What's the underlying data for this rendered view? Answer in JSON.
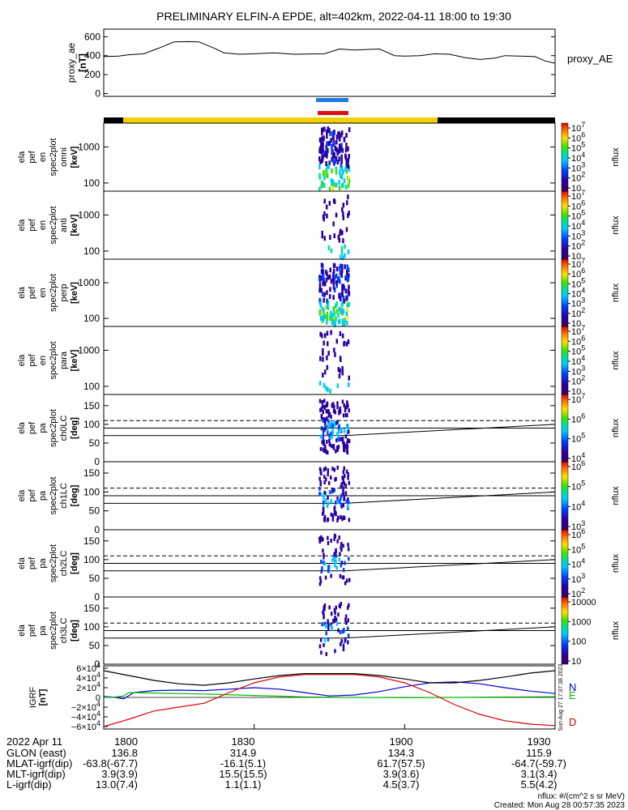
{
  "chart_data": {
    "type": "heatmap",
    "title": "PRELIMINARY ELFIN-A EPDE, alt=402km, 2022-04-11 18:00 to 19:30",
    "x_range": [
      "18:00",
      "19:30"
    ],
    "panels": [
      {
        "ylabel": [
          "proxy_ae",
          "[nT]"
        ],
        "yticks": [
          "600",
          "400",
          "200",
          "0"
        ],
        "ylim": [
          -30,
          680
        ],
        "series": [
          {
            "name": "proxy_AE",
            "x": [
              0,
              3,
              5,
              8,
              11,
              14,
              17,
              19,
              22,
              24,
              27,
              30,
              34,
              38,
              41,
              44,
              47,
              50,
              55,
              58,
              60,
              63,
              66,
              69,
              72,
              75,
              78,
              80,
              83,
              86,
              88,
              90
            ],
            "values": [
              390,
              395,
              410,
              420,
              480,
              545,
              548,
              545,
              480,
              430,
              415,
              420,
              430,
              415,
              418,
              420,
              470,
              460,
              470,
              400,
              395,
              400,
              420,
              415,
              380,
              360,
              375,
              400,
              395,
              390,
              345,
              320
            ]
          }
        ]
      },
      {
        "ylabel": [
          "ela",
          "pef",
          "en",
          "spec2plot",
          "omni",
          "[keV]"
        ],
        "yticks": [
          "1000",
          "100"
        ],
        "colorbar_ticks": [
          "10^7",
          "10^6",
          "10^5",
          "10^4",
          "10^3",
          "10^2",
          "10"
        ],
        "colorbar_label": "nflux"
      },
      {
        "ylabel": [
          "ela",
          "pef",
          "en",
          "spec2plot",
          "anti",
          "[keV]"
        ],
        "yticks": [
          "1000",
          "100"
        ],
        "colorbar_ticks": [
          "10^7",
          "10^6",
          "10^5",
          "10^4",
          "10^3",
          "10^2",
          "10"
        ],
        "colorbar_label": "nflux"
      },
      {
        "ylabel": [
          "ela",
          "pef",
          "en",
          "spec2plot",
          "perp",
          "[keV]"
        ],
        "yticks": [
          "1000",
          "100"
        ],
        "colorbar_ticks": [
          "10^7",
          "10^6",
          "10^5",
          "10^4",
          "10^3",
          "10^2",
          "10"
        ],
        "colorbar_label": "nflux"
      },
      {
        "ylabel": [
          "ela",
          "pef",
          "en",
          "spec2plot",
          "para",
          "[keV]"
        ],
        "yticks": [
          "1000",
          "100"
        ],
        "colorbar_ticks": [
          "10^7",
          "10^6",
          "10^5",
          "10^4",
          "10^3",
          "10^2",
          "10"
        ],
        "colorbar_label": "nflux"
      },
      {
        "ylabel": [
          "ela",
          "pef",
          "pa",
          "spec2plot",
          "ch0LC",
          "[deg]"
        ],
        "yticks": [
          "150",
          "100",
          "50",
          "0"
        ],
        "colorbar_ticks": [
          "10^7",
          "10^6",
          "10^5",
          "10^4"
        ],
        "colorbar_label": "nflux"
      },
      {
        "ylabel": [
          "ela",
          "pef",
          "pa",
          "spec2plot",
          "ch1LC",
          "[deg]"
        ],
        "yticks": [
          "150",
          "100",
          "50",
          "0"
        ],
        "colorbar_ticks": [
          "10^6",
          "10^5",
          "10^4",
          "10^3"
        ],
        "colorbar_label": "nflux"
      },
      {
        "ylabel": [
          "ela",
          "pef",
          "pa",
          "spec2plot",
          "ch2LC",
          "[deg]"
        ],
        "yticks": [
          "150",
          "100",
          "50",
          "0"
        ],
        "colorbar_ticks": [
          "10^6",
          "10^5",
          "10^4",
          "10^3",
          "10^2"
        ],
        "colorbar_label": "nflux"
      },
      {
        "ylabel": [
          "ela",
          "pef",
          "pa",
          "spec2plot",
          "ch3LC",
          "[deg]"
        ],
        "yticks": [
          "150",
          "100",
          "50",
          "0"
        ],
        "colorbar_ticks": [
          "10000",
          "1000",
          "100",
          "10"
        ],
        "colorbar_label": "nflux"
      },
      {
        "ylabel": [
          "IGRF",
          "[nT]"
        ],
        "yticks": [
          "6×10^4",
          "4×10^4",
          "2×10^4",
          "0",
          "−2×10^4",
          "−4×10^4",
          "−6×10^4"
        ],
        "ylim": [
          -65000,
          65000
        ],
        "series": [
          {
            "name": "N",
            "color": "#0000dd",
            "x": [
              0,
              2,
              4,
              6,
              10,
              15,
              20,
              25,
              30,
              35,
              40,
              45,
              50,
              55,
              60,
              65,
              70,
              75,
              80,
              85,
              90
            ],
            "values": [
              2000,
              500,
              -3000,
              10000,
              14000,
              15000,
              14000,
              17000,
              20000,
              17000,
              10000,
              3000,
              5000,
              12000,
              22000,
              30000,
              32000,
              28000,
              20000,
              13000,
              8000
            ]
          },
          {
            "name": "E",
            "color": "#00bb00",
            "x": [
              0,
              2,
              4,
              5,
              10,
              20,
              30,
              40,
              50,
              60,
              70,
              80,
              90
            ],
            "values": [
              0,
              500,
              3000,
              10000,
              9000,
              7000,
              4000,
              1000,
              0,
              -500,
              0,
              800,
              1500
            ]
          },
          {
            "name": "D",
            "color": "#dd0000",
            "x": [
              0,
              5,
              10,
              15,
              20,
              25,
              30,
              35,
              40,
              45,
              50,
              55,
              60,
              65,
              70,
              75,
              80,
              85,
              90
            ],
            "values": [
              -60000,
              -45000,
              -28000,
              -20000,
              -12000,
              10000,
              30000,
              42000,
              47000,
              47000,
              47000,
              42000,
              30000,
              10000,
              -15000,
              -35000,
              -48000,
              -55000,
              -58000
            ]
          },
          {
            "name": "",
            "color": "#000000",
            "x": [
              0,
              5,
              10,
              15,
              20,
              25,
              30,
              35,
              40,
              45,
              50,
              55,
              60,
              65,
              70,
              75,
              80,
              85,
              90
            ],
            "values": [
              55000,
              45000,
              35000,
              28000,
              25000,
              30000,
              38000,
              45000,
              49000,
              49000,
              49000,
              45000,
              38000,
              30000,
              30000,
              35000,
              42000,
              50000,
              55000
            ]
          }
        ],
        "right_note": "Sun Aug 27 17:37:38 2023"
      }
    ],
    "time_ticks": [
      "1800",
      "1830",
      "1900",
      "1930"
    ]
  },
  "legend_label": "proxy_AE",
  "footer": {
    "rows": [
      {
        "label": "2022 Apr 11",
        "values": [
          "1800",
          "1830",
          "1900",
          "1930"
        ]
      },
      {
        "label": "GLON (east)",
        "values": [
          "136.8",
          "314.9",
          "134.3",
          "115.9"
        ]
      },
      {
        "label": "MLAT-igrf(dip)",
        "values": [
          "-63.8(-67.7)",
          "-16.1(5.1)",
          "61.7(57.5)",
          "-64.7(-59.7)"
        ]
      },
      {
        "label": "MLT-igrf(dip)",
        "values": [
          "3.9(3.9)",
          "15.5(15.5)",
          "3.9(3.6)",
          "3.1(3.4)"
        ]
      },
      {
        "label": "L-igrf(dip)",
        "values": [
          "13.0(7.4)",
          "1.1(1.1)",
          "4.5(3.7)",
          "5.5(4.2)"
        ]
      }
    ],
    "unit_note": "nflux: #/(cm^2 s sr MeV)",
    "created": "Created: Mon Aug 28 00:57:35 2023"
  }
}
